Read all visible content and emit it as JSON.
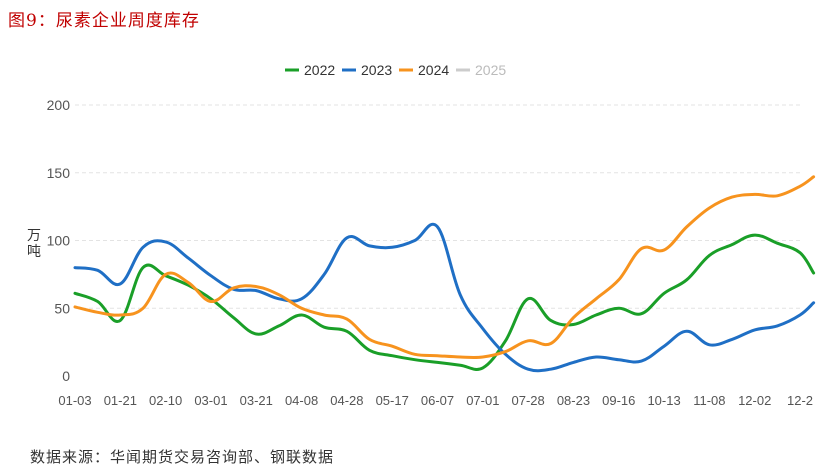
{
  "figure_title": "图9：尿素企业周度库存",
  "source_note": "数据来源：华闻期货交易咨询部、钢联数据",
  "chart_data": {
    "type": "line",
    "ylabel": "万吨",
    "xlabel": "",
    "ylim": [
      0,
      200
    ],
    "yticks": [
      0,
      50,
      100,
      150,
      200
    ],
    "grid": true,
    "legend_position": "top-center",
    "categories": [
      "01-03",
      "01-21",
      "02-10",
      "03-01",
      "03-21",
      "04-08",
      "04-28",
      "05-17",
      "06-07",
      "07-01",
      "07-28",
      "08-23",
      "09-16",
      "10-13",
      "11-08",
      "12-02",
      "12-2"
    ],
    "x_tick_labels": [
      "01-03",
      "01-21",
      "02-10",
      "03-01",
      "03-21",
      "04-08",
      "04-28",
      "05-17",
      "06-07",
      "07-01",
      "07-28",
      "08-23",
      "09-16",
      "10-13",
      "11-08",
      "12-02",
      "12-2"
    ],
    "series": [
      {
        "name": "2022",
        "color": "#1a9f28",
        "hidden": false,
        "x": [
          0,
          0.5,
          1,
          1.5,
          2,
          2.5,
          3,
          3.5,
          4,
          4.5,
          5,
          5.5,
          6,
          6.5,
          7,
          7.5,
          8,
          8.5,
          9,
          9.5,
          10,
          10.5,
          11,
          11.5,
          12,
          12.5,
          13,
          13.5,
          14,
          14.5,
          15,
          15.5,
          16,
          16.3
        ],
        "values": [
          61,
          55,
          41,
          80,
          74,
          67,
          57,
          43,
          31,
          37,
          45,
          36,
          33,
          19,
          15,
          12,
          10,
          8,
          6,
          26,
          57,
          41,
          38,
          45,
          50,
          46,
          61,
          71,
          89,
          97,
          104,
          98,
          91,
          76
        ]
      },
      {
        "name": "2023",
        "color": "#1f6fc5",
        "hidden": false,
        "x": [
          0,
          0.5,
          1,
          1.5,
          2,
          2.5,
          3,
          3.5,
          4,
          4.5,
          5,
          5.5,
          6,
          6.5,
          7,
          7.5,
          8,
          8.5,
          9,
          9.5,
          10,
          10.5,
          11,
          11.5,
          12,
          12.5,
          13,
          13.5,
          14,
          14.5,
          15,
          15.5,
          16,
          16.3
        ],
        "values": [
          80,
          78,
          68,
          95,
          99,
          87,
          74,
          64,
          63,
          57,
          57,
          75,
          102,
          96,
          95,
          100,
          110,
          60,
          35,
          16,
          5,
          5,
          10,
          14,
          12,
          11,
          22,
          33,
          23,
          27,
          34,
          37,
          45,
          54
        ]
      },
      {
        "name": "2024",
        "color": "#f7931e",
        "hidden": false,
        "x": [
          0,
          0.5,
          1,
          1.5,
          2,
          2.5,
          3,
          3.5,
          4,
          4.5,
          5,
          5.5,
          6,
          6.5,
          7,
          7.5,
          8,
          8.5,
          9,
          9.5,
          10,
          10.5,
          11,
          11.5,
          12,
          12.5,
          13,
          13.5,
          14,
          14.5,
          15,
          15.5,
          16,
          16.3
        ],
        "values": [
          51,
          47,
          45,
          50,
          75,
          69,
          55,
          65,
          66,
          60,
          50,
          45,
          42,
          27,
          22,
          16,
          15,
          14,
          14,
          18,
          26,
          24,
          43,
          57,
          71,
          94,
          93,
          110,
          124,
          132,
          134,
          133,
          140,
          147
        ]
      },
      {
        "name": "2025",
        "color": "#cccccc",
        "hidden": true,
        "x": [],
        "values": []
      }
    ]
  }
}
